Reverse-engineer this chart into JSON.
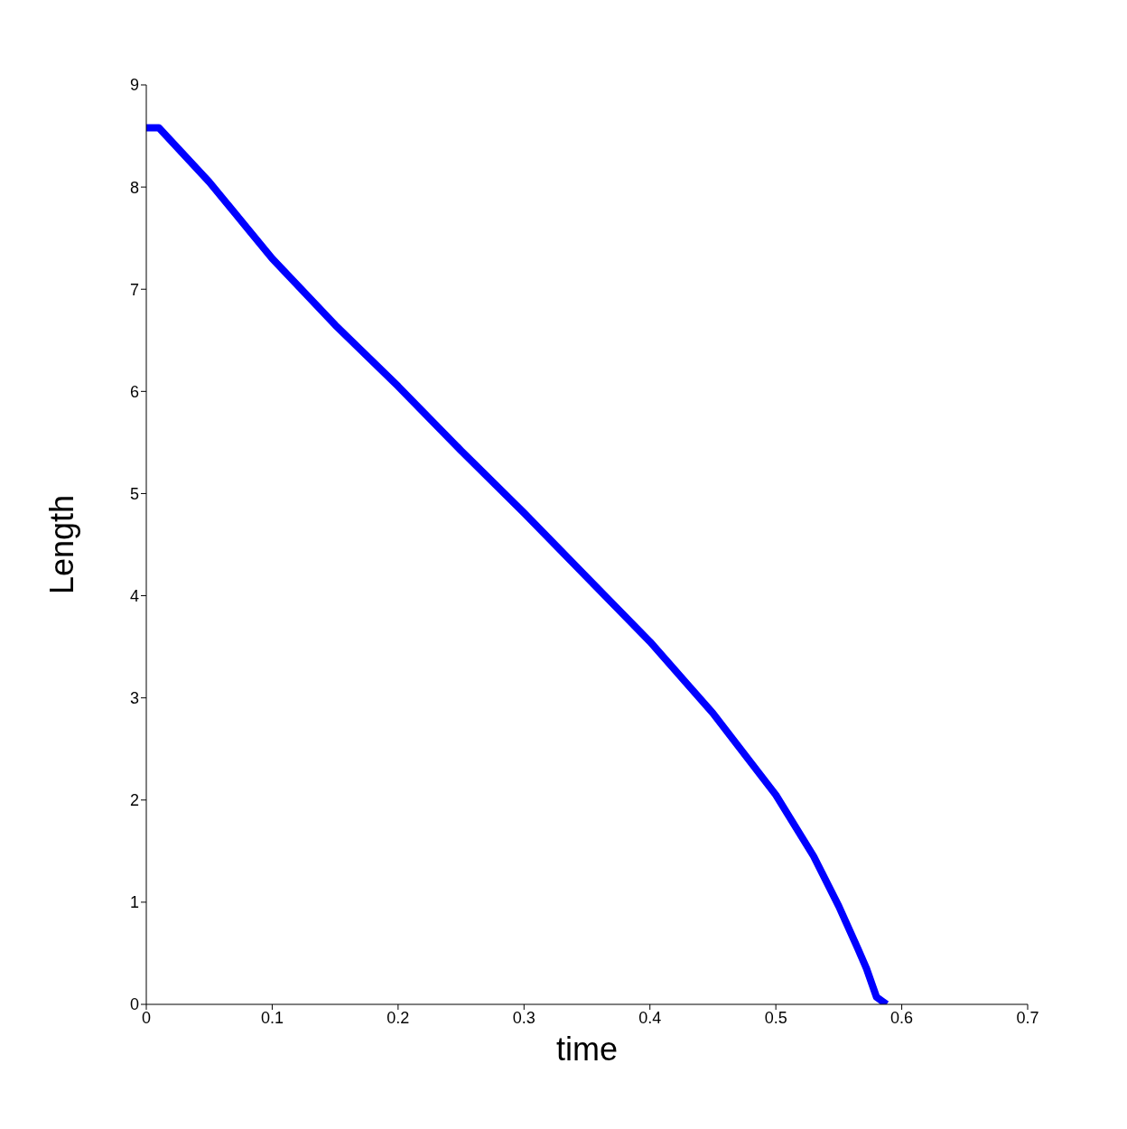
{
  "chart_data": {
    "type": "line",
    "xlabel": "time",
    "ylabel": "Length",
    "x": [
      0,
      0.01,
      0.05,
      0.1,
      0.15,
      0.2,
      0.25,
      0.3,
      0.35,
      0.4,
      0.45,
      0.5,
      0.53,
      0.55,
      0.565,
      0.572,
      0.58,
      0.588
    ],
    "series": [
      {
        "color": "#0000ff",
        "values": [
          8.58,
          8.58,
          8.05,
          7.3,
          6.65,
          6.05,
          5.42,
          4.81,
          4.18,
          3.55,
          2.85,
          2.05,
          1.45,
          0.96,
          0.55,
          0.35,
          0.07,
          0.0
        ]
      }
    ],
    "xlim": [
      0,
      0.7
    ],
    "xticks": [
      0,
      0.1,
      0.2,
      0.3,
      0.4,
      0.5,
      0.6,
      0.7
    ],
    "ylim": [
      0,
      9
    ],
    "yticks": [
      0,
      1,
      2,
      3,
      4,
      5,
      6,
      7,
      8,
      9
    ],
    "grid": false,
    "legend": false,
    "marker": "none",
    "line_style": "solid"
  }
}
